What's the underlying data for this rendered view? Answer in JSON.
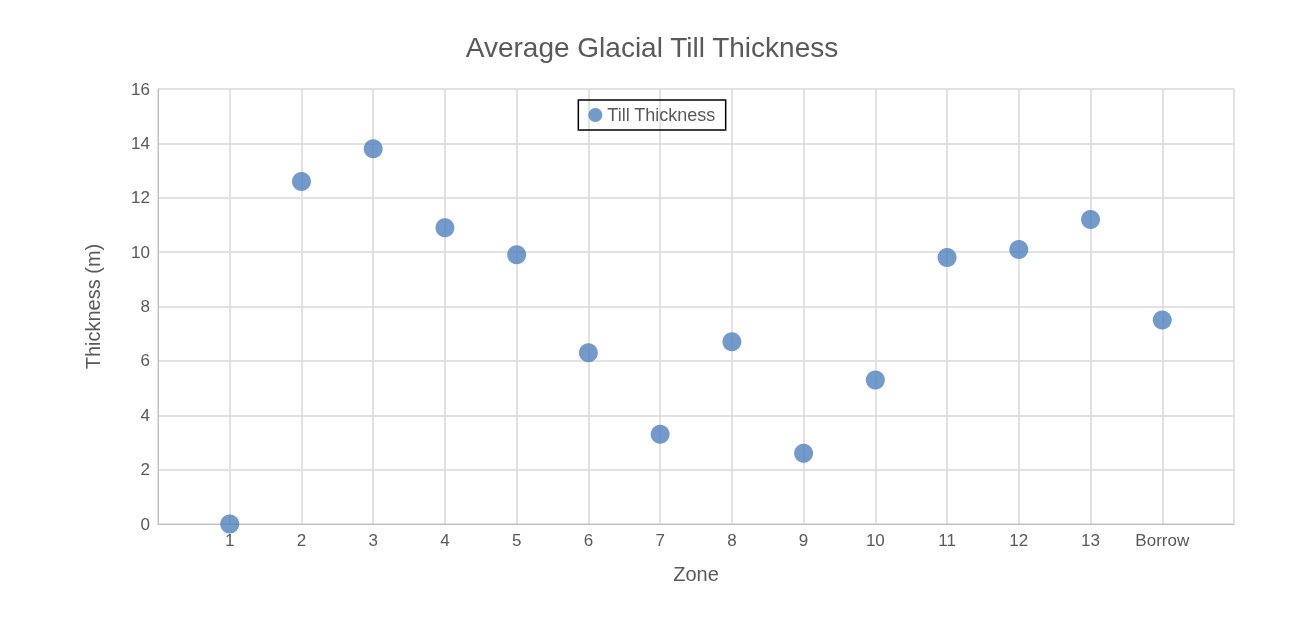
{
  "chart_data": {
    "type": "scatter",
    "title": "Average Glacial Till Thickness",
    "xlabel": "Zone",
    "ylabel": "Thickness (m)",
    "x": [
      1,
      2,
      3,
      4,
      5,
      6,
      7,
      8,
      9,
      10,
      11,
      12,
      13,
      14
    ],
    "series": [
      {
        "name": "Till Thickness",
        "color": "#4f81bd",
        "values": [
          0,
          12.6,
          13.8,
          10.9,
          9.9,
          6.3,
          3.3,
          6.7,
          2.6,
          5.3,
          9.8,
          10.1,
          11.2,
          7.5
        ]
      }
    ],
    "xlim": [
      0,
      15
    ],
    "xticks": [
      {
        "value": 0,
        "label": null
      },
      1,
      2,
      3,
      4,
      5,
      6,
      7,
      8,
      9,
      10,
      11,
      12,
      13,
      {
        "value": 14,
        "label": "Borrow"
      },
      {
        "value": 15,
        "label": null
      }
    ],
    "ylim": [
      0,
      16
    ],
    "yticks": [
      0,
      2,
      4,
      6,
      8,
      10,
      12,
      14,
      16
    ],
    "grid": true,
    "legend": "top",
    "marker": "circle"
  }
}
